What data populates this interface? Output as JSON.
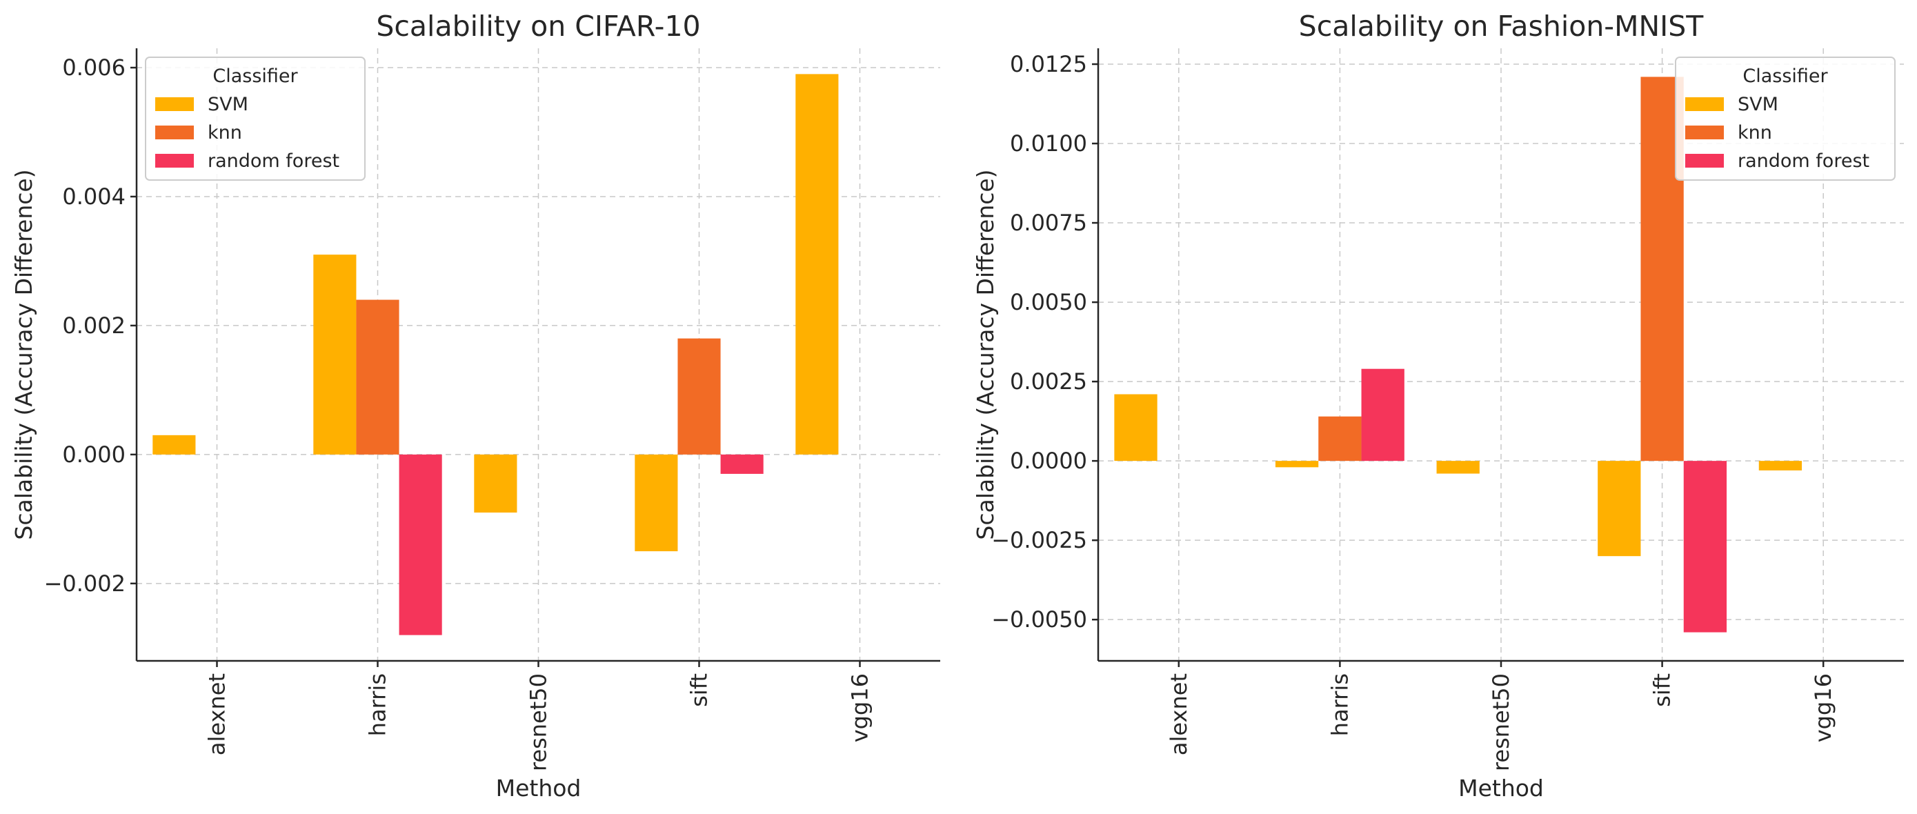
{
  "chart_data": [
    {
      "type": "bar",
      "title": "Scalability on CIFAR-10",
      "xlabel": "Method",
      "ylabel": "Scalability (Accuracy Difference)",
      "categories": [
        "alexnet",
        "harris",
        "resnet50",
        "sift",
        "vgg16"
      ],
      "ylim": [
        -0.0032,
        0.0063
      ],
      "yticks": [
        -0.002,
        0.0,
        0.002,
        0.004,
        0.006
      ],
      "ytick_labels": [
        "−0.002",
        "0.000",
        "0.002",
        "0.004",
        "0.006"
      ],
      "grid": true,
      "legend": {
        "title": "Classifier",
        "position": "top-left"
      },
      "series": [
        {
          "name": "SVM",
          "color": "#ffb000",
          "values": [
            0.0003,
            0.0031,
            -0.0009,
            -0.0015,
            0.0059
          ]
        },
        {
          "name": "knn",
          "color": "#f26b25",
          "values": [
            null,
            0.0024,
            null,
            0.0018,
            null
          ]
        },
        {
          "name": "random forest",
          "color": "#f5355a",
          "values": [
            null,
            -0.0028,
            null,
            -0.0003,
            null
          ]
        }
      ]
    },
    {
      "type": "bar",
      "title": "Scalability on Fashion-MNIST",
      "xlabel": "Method",
      "ylabel": "Scalability (Accuracy Difference)",
      "categories": [
        "alexnet",
        "harris",
        "resnet50",
        "sift",
        "vgg16"
      ],
      "ylim": [
        -0.0063,
        0.013
      ],
      "yticks": [
        -0.005,
        -0.0025,
        0.0,
        0.0025,
        0.005,
        0.0075,
        0.01,
        0.0125
      ],
      "ytick_labels": [
        "−0.0050",
        "−0.0025",
        "0.0000",
        "0.0025",
        "0.0050",
        "0.0075",
        "0.0100",
        "0.0125"
      ],
      "grid": true,
      "legend": {
        "title": "Classifier",
        "position": "top-right"
      },
      "series": [
        {
          "name": "SVM",
          "color": "#ffb000",
          "values": [
            0.0021,
            -0.0002,
            -0.0004,
            -0.003,
            -0.0003
          ]
        },
        {
          "name": "knn",
          "color": "#f26b25",
          "values": [
            null,
            0.0014,
            null,
            0.0121,
            null
          ]
        },
        {
          "name": "random forest",
          "color": "#f5355a",
          "values": [
            null,
            0.0029,
            null,
            -0.0054,
            null
          ]
        }
      ]
    }
  ]
}
